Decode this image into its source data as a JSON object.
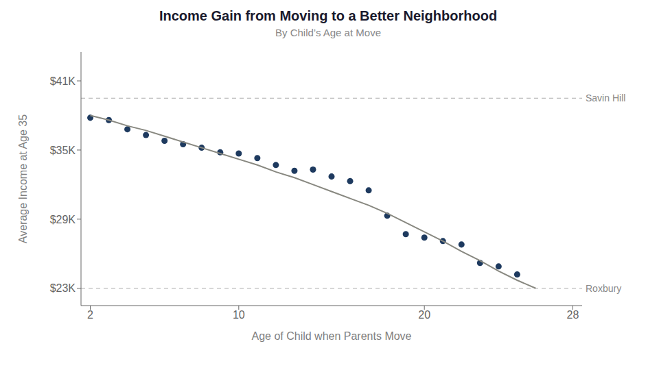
{
  "chart_data": {
    "type": "scatter",
    "title": "Income Gain from Moving to a Better Neighborhood",
    "subtitle": "By Child’s Age at Move",
    "x_label": "Age of Child when Parents Move",
    "y_label": "Average Income at Age 35",
    "xlim": [
      1.5,
      28.5
    ],
    "xticks": [
      2,
      10,
      20,
      28
    ],
    "ylim": [
      21500,
      43500
    ],
    "yticks": [
      {
        "value": 23000,
        "label": "$23K"
      },
      {
        "value": 29000,
        "label": "$29K"
      },
      {
        "value": 35000,
        "label": "$35K"
      },
      {
        "value": 41000,
        "label": "$41K"
      }
    ],
    "grid": false,
    "series": [
      {
        "type": "scatter",
        "color": "#1e3a5f",
        "marker": "circle",
        "x": [
          2,
          3,
          4,
          5,
          6,
          7,
          8,
          9,
          10,
          11,
          12,
          13,
          14,
          15,
          16,
          17,
          18,
          19,
          20,
          21,
          22,
          23,
          24,
          25
        ],
        "values": [
          37800,
          37600,
          36800,
          36300,
          35800,
          35500,
          35200,
          34800,
          34700,
          34300,
          33700,
          33200,
          33300,
          32700,
          32300,
          31500,
          29300,
          27700,
          27400,
          27100,
          26800,
          25200,
          24900,
          24200
        ]
      },
      {
        "type": "line",
        "color": "#888880",
        "line_style": "solid",
        "x": [
          2,
          3,
          4,
          5,
          6,
          7,
          8,
          9,
          10,
          11,
          12,
          13,
          14,
          15,
          16,
          17,
          18,
          19,
          20,
          21,
          22,
          23,
          24,
          25,
          26
        ],
        "values": [
          38000,
          37600,
          37100,
          36700,
          36200,
          35700,
          35200,
          34700,
          34200,
          33700,
          33100,
          32600,
          32000,
          31400,
          30800,
          30200,
          29500,
          28700,
          27900,
          27100,
          26200,
          25400,
          24500,
          23700,
          23000
        ]
      }
    ],
    "annotations": [
      {
        "label": "Savin Hill",
        "y": 39500,
        "color": "#aaaaaa",
        "line_style": "dashed"
      },
      {
        "label": "Roxbury",
        "y": 23000,
        "color": "#aaaaaa",
        "line_style": "dashed"
      }
    ]
  }
}
